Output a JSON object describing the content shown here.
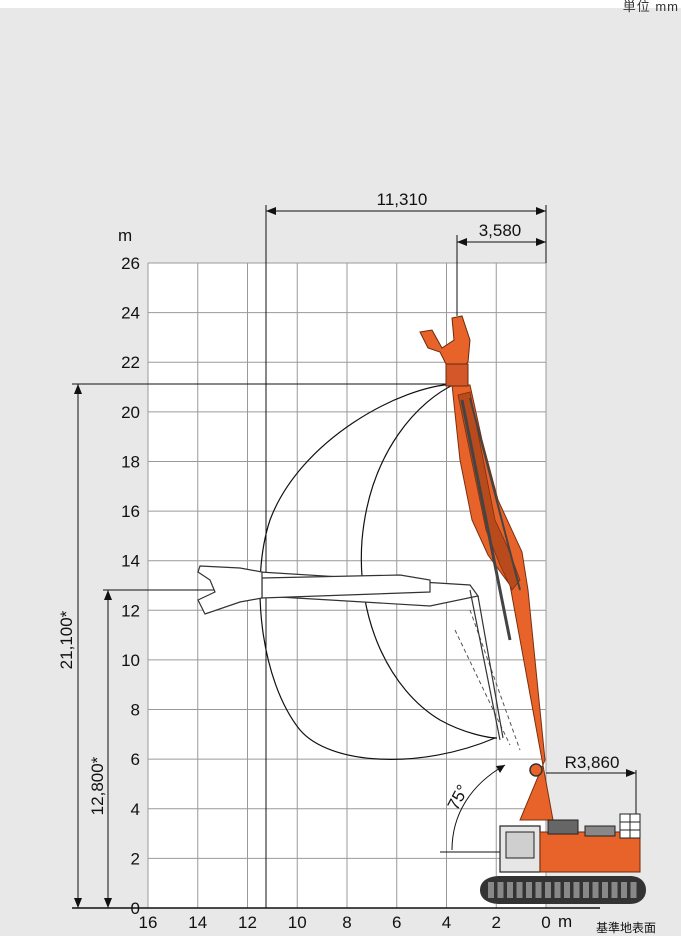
{
  "corner_text": "単位 mm",
  "y_unit_label": "m",
  "x_unit_label": "m",
  "ground_label": "基準地表面",
  "chart_data": {
    "type": "diagram",
    "description_labels": {
      "max_reach": "11,310",
      "min_reach": "3,580",
      "tail_radius": "R3,860",
      "height_high": "21,100*",
      "height_low": "12,800*",
      "boom_angle": "75°"
    },
    "x_ticks": [
      "16",
      "14",
      "12",
      "10",
      "8",
      "6",
      "4",
      "2",
      "0"
    ],
    "y_ticks": [
      "26",
      "24",
      "22",
      "20",
      "18",
      "16",
      "14",
      "12",
      "10",
      "8",
      "6",
      "4",
      "2",
      "0"
    ],
    "xlim": [
      16,
      0
    ],
    "ylim": [
      0,
      26
    ]
  },
  "colors": {
    "boom": "#e8632a",
    "boom_dark": "#b94a1c",
    "line": "#111111",
    "grid": "#9a9a9a",
    "panel": "#e8e8e8",
    "plot": "#ffffff"
  }
}
